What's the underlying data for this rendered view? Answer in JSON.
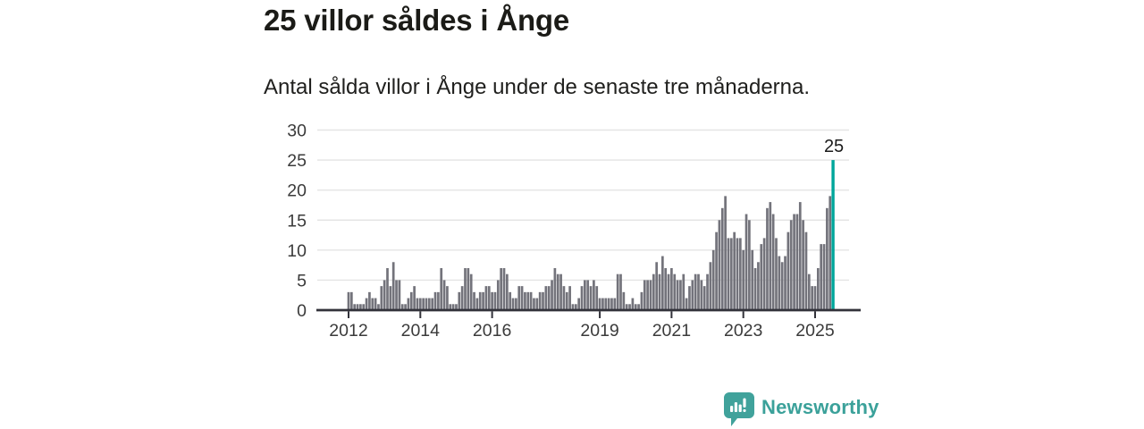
{
  "chart_data": {
    "type": "bar",
    "title": "25 villor såldes i Ånge",
    "subtitle": "Antal sålda villor i Ånge under de senaste tre månaderna.",
    "xlabel": "",
    "ylabel": "",
    "ylim": [
      0,
      30
    ],
    "y_ticks": [
      0,
      5,
      10,
      15,
      20,
      25,
      30
    ],
    "x_ticks": [
      {
        "label": "2012",
        "month_index": 0
      },
      {
        "label": "2014",
        "month_index": 24
      },
      {
        "label": "2016",
        "month_index": 48
      },
      {
        "label": "2019",
        "month_index": 84
      },
      {
        "label": "2021",
        "month_index": 108
      },
      {
        "label": "2023",
        "month_index": 132
      },
      {
        "label": "2025",
        "month_index": 156
      }
    ],
    "start_year": 2012,
    "values": [
      3,
      3,
      1,
      1,
      1,
      1,
      2,
      3,
      2,
      2,
      1,
      4,
      5,
      7,
      4,
      8,
      5,
      5,
      1,
      1,
      2,
      3,
      4,
      2,
      2,
      2,
      2,
      2,
      2,
      3,
      3,
      7,
      5,
      4,
      1,
      1,
      1,
      3,
      4,
      7,
      7,
      6,
      3,
      2,
      3,
      3,
      4,
      4,
      3,
      3,
      5,
      7,
      7,
      6,
      3,
      2,
      2,
      4,
      4,
      3,
      3,
      3,
      2,
      2,
      3,
      3,
      4,
      4,
      5,
      7,
      6,
      6,
      4,
      3,
      4,
      1,
      1,
      2,
      4,
      5,
      5,
      4,
      5,
      4,
      2,
      2,
      2,
      2,
      2,
      2,
      6,
      6,
      3,
      1,
      1,
      2,
      1,
      1,
      3,
      5,
      5,
      5,
      6,
      8,
      6,
      9,
      7,
      6,
      7,
      6,
      5,
      5,
      6,
      2,
      4,
      5,
      6,
      6,
      5,
      4,
      6,
      8,
      10,
      13,
      15,
      17,
      19,
      12,
      12,
      13,
      12,
      12,
      10,
      16,
      15,
      10,
      7,
      8,
      11,
      12,
      17,
      18,
      16,
      12,
      9,
      8,
      9,
      13,
      15,
      16,
      16,
      18,
      15,
      13,
      6,
      4,
      4,
      7,
      11,
      11,
      17,
      19,
      25
    ],
    "highlight_index": 162,
    "annotation": {
      "text": "25"
    },
    "grid": true,
    "legend": false,
    "bar_color": "#73737b",
    "highlight_color": "#00a69b"
  },
  "footer": {
    "brand": "Newsworthy",
    "logo_icon": "bar-chart-speech-bubble-icon"
  },
  "colors": {
    "accent": "#00a69b",
    "brand": "#3ba19a",
    "bar": "#73737b",
    "gridline": "#e4e4e4",
    "axis": "#32323a"
  }
}
